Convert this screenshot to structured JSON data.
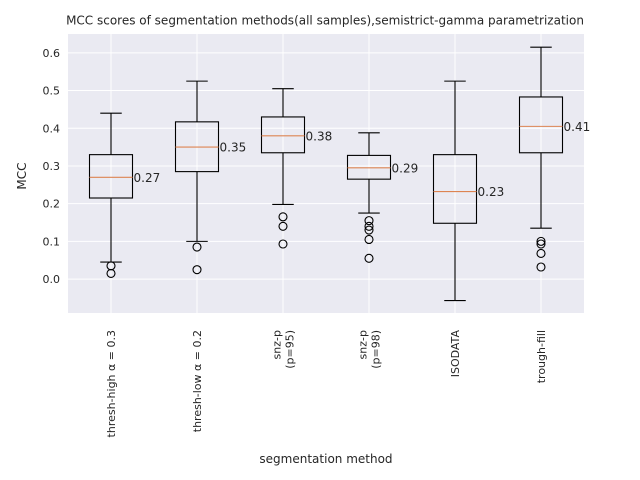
{
  "chart_data": {
    "type": "box",
    "title": "MCC scores of segmentation methods(all samples),semistrict-gamma parametrization",
    "xlabel": "segmentation method",
    "ylabel": "MCC",
    "ylim": [
      -0.09,
      0.65
    ],
    "yticks": [
      "0.0",
      "0.1",
      "0.2",
      "0.3",
      "0.4",
      "0.5",
      "0.6"
    ],
    "grid": true,
    "boxes": [
      {
        "label_lines": [
          "thresh-high α = 0.3"
        ],
        "whisker_low": 0.045,
        "q1": 0.215,
        "median": 0.27,
        "q3": 0.33,
        "whisker_high": 0.44,
        "fliers": [
          0.035,
          0.015
        ],
        "median_label": "0.27"
      },
      {
        "label_lines": [
          "thresh-low α = 0.2"
        ],
        "whisker_low": 0.1,
        "q1": 0.285,
        "median": 0.35,
        "q3": 0.417,
        "whisker_high": 0.525,
        "fliers": [
          0.085,
          0.025
        ],
        "median_label": "0.35"
      },
      {
        "label_lines": [
          "snz-p",
          "(p=95)"
        ],
        "whisker_low": 0.198,
        "q1": 0.335,
        "median": 0.38,
        "q3": 0.43,
        "whisker_high": 0.505,
        "fliers": [
          0.165,
          0.14,
          0.093
        ],
        "median_label": "0.38"
      },
      {
        "label_lines": [
          "snz-p",
          "(p=98)"
        ],
        "whisker_low": 0.175,
        "q1": 0.265,
        "median": 0.295,
        "q3": 0.328,
        "whisker_high": 0.388,
        "fliers": [
          0.155,
          0.14,
          0.13,
          0.105,
          0.055
        ],
        "median_label": "0.29"
      },
      {
        "label_lines": [
          "ISODATA"
        ],
        "whisker_low": -0.057,
        "q1": 0.148,
        "median": 0.232,
        "q3": 0.33,
        "whisker_high": 0.525,
        "fliers": [],
        "median_label": "0.23"
      },
      {
        "label_lines": [
          "trough-fill"
        ],
        "whisker_low": 0.135,
        "q1": 0.335,
        "median": 0.405,
        "q3": 0.483,
        "whisker_high": 0.615,
        "fliers": [
          0.1,
          0.093,
          0.068,
          0.032
        ],
        "median_label": "0.41"
      }
    ],
    "colors": {
      "plot_background": "#eaeaf2",
      "grid": "#ffffff",
      "box": "#000000",
      "median": "#dd8452",
      "text": "#262626"
    }
  }
}
